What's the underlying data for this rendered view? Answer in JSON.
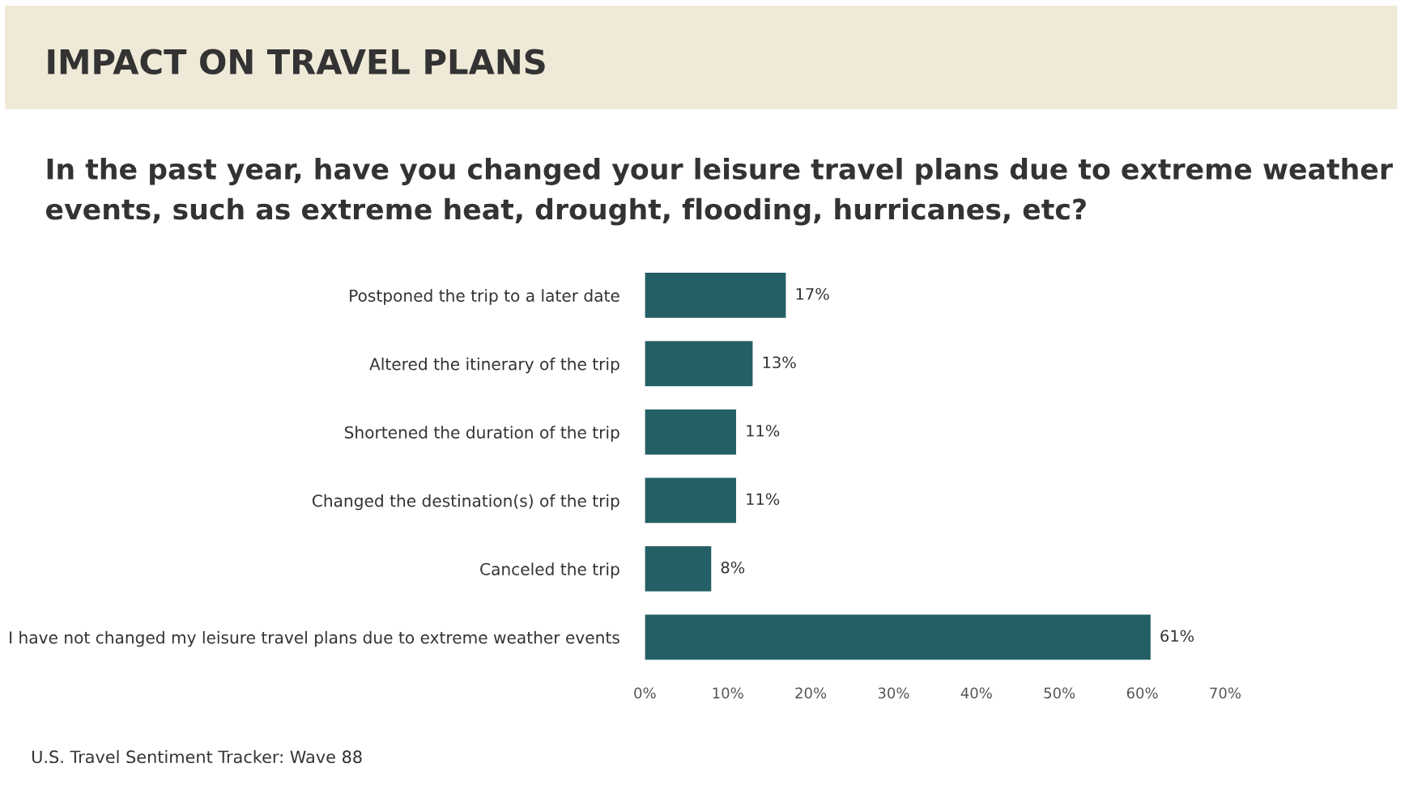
{
  "chart_data": {
    "type": "bar",
    "orientation": "horizontal",
    "title": "IMPACT ON TRAVEL PLANS",
    "subtitle": "In the past year, have you changed your leisure travel plans due to extreme weather events, such as extreme heat, drought, flooding, hurricanes, etc?",
    "categories": [
      "Postponed the trip to a later date",
      "Altered the itinerary of the trip",
      "Shortened the duration of the trip",
      "Changed the destination(s) of the trip",
      "Canceled the trip",
      "I have not changed my leisure travel plans due to extreme weather events"
    ],
    "values": [
      17,
      13,
      11,
      11,
      8,
      61
    ],
    "color": "#245f66",
    "value_labels": [
      "17%",
      "13%",
      "11%",
      "11%",
      "8%",
      "61%"
    ],
    "xlim": [
      0,
      70
    ],
    "xticks": [
      {
        "value": 0,
        "label": "0%"
      },
      {
        "value": 10,
        "label": "10%"
      },
      {
        "value": 20,
        "label": "20%"
      },
      {
        "value": 30,
        "label": "30%"
      },
      {
        "value": 40,
        "label": "40%"
      },
      {
        "value": 50,
        "label": "50%"
      },
      {
        "value": 60,
        "label": "60%"
      },
      {
        "value": 70,
        "label": "70%"
      }
    ],
    "grid": false,
    "legend": false,
    "annotations": [
      "U.S. Travel Sentiment Tracker: Wave 88"
    ]
  }
}
